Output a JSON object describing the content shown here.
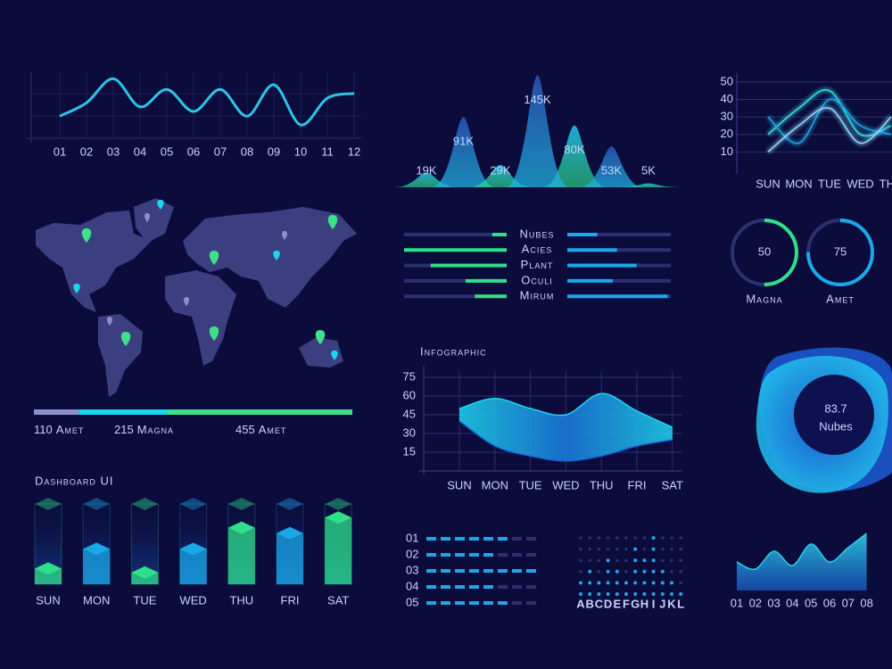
{
  "chart_data": [
    {
      "type": "line",
      "categories": [
        "01",
        "02",
        "03",
        "04",
        "05",
        "06",
        "07",
        "08",
        "09",
        "10",
        "11",
        "12"
      ],
      "values": [
        33,
        53,
        89,
        47,
        73,
        40,
        73,
        33,
        80,
        20,
        60,
        67
      ],
      "ylim": [
        0,
        100
      ],
      "color": "#2ec4e6",
      "grid": true
    },
    {
      "type": "peak",
      "categories": [
        null,
        null,
        null,
        null,
        null,
        null,
        null
      ],
      "values": [
        19000,
        91000,
        29000,
        145000,
        80000,
        53000,
        5000
      ],
      "value_labels": [
        "19K",
        "91K",
        "29K",
        "145K",
        "80K",
        "53K",
        "5K"
      ],
      "ylim": [
        0,
        150000
      ]
    },
    {
      "type": "multiline",
      "categories": [
        "SUN",
        "MON",
        "TUE",
        "WED",
        "THU"
      ],
      "series": [
        {
          "color": "#37e0e8",
          "values": [
            20,
            35,
            45,
            20,
            25
          ]
        },
        {
          "color": "#1fa6e0",
          "values": [
            30,
            15,
            40,
            25,
            20
          ]
        },
        {
          "color": "#8fd9ff",
          "values": [
            10,
            25,
            35,
            15,
            30
          ]
        }
      ],
      "ylim": [
        0,
        55
      ],
      "yticks": [
        10,
        20,
        30,
        40,
        50
      ],
      "grid": true
    },
    {
      "type": "paired-bar",
      "categories": [
        "Nubes",
        "Acies",
        "Plant",
        "Oculi",
        "Mirum"
      ],
      "series": [
        {
          "color": "#2ee08a",
          "values": [
            14,
            100,
            74,
            40,
            31
          ]
        },
        {
          "color": "#1aa8e8",
          "values": [
            29,
            48,
            67,
            44,
            97
          ]
        }
      ],
      "xlim": [
        0,
        100
      ]
    },
    {
      "type": "gauge",
      "categories": [
        "Magna",
        "Amet"
      ],
      "values": [
        50,
        75
      ],
      "ylim": [
        0,
        100
      ],
      "colors": [
        "#2ee08a",
        "#1aa8e8"
      ]
    },
    {
      "type": "area-band",
      "title": "Infographic",
      "categories": [
        "SUN",
        "MON",
        "TUE",
        "WED",
        "THU",
        "FRI",
        "SAT"
      ],
      "series": [
        {
          "color": "#1fd6f0",
          "values": [
            50,
            58,
            50,
            45,
            62,
            48,
            35
          ]
        },
        {
          "color": "#1565d8",
          "values": [
            40,
            20,
            12,
            8,
            12,
            20,
            25
          ]
        }
      ],
      "ylim": [
        0,
        80
      ],
      "yticks": [
        15,
        30,
        45,
        60,
        75
      ],
      "grid": true
    },
    {
      "type": "kpi",
      "value": 83.7,
      "label": "Nubes"
    },
    {
      "type": "bar3d",
      "title": "Dashboard UI",
      "categories": [
        "SUN",
        "MON",
        "TUE",
        "WED",
        "THU",
        "FRI",
        "SAT"
      ],
      "values": [
        20,
        45,
        15,
        45,
        72,
        65,
        85
      ],
      "ylim": [
        0,
        100
      ],
      "colors": [
        "#2ee08a",
        "#1aa8e8",
        "#2ee08a",
        "#1aa8e8",
        "#2ee08a",
        "#1aa8e8",
        "#2ee08a"
      ]
    },
    {
      "type": "dash-rows",
      "categories": [
        "01",
        "02",
        "03",
        "04",
        "05"
      ],
      "values": [
        6,
        5,
        8,
        5,
        6
      ],
      "xlim": [
        0,
        8
      ],
      "color": "#1fa6e8"
    },
    {
      "type": "dot-matrix",
      "categories": [
        "A",
        "B",
        "C",
        "D",
        "E",
        "F",
        "G",
        "H",
        "I",
        "J",
        "K",
        "L"
      ],
      "values": [
        2,
        3,
        2,
        4,
        3,
        2,
        5,
        4,
        6,
        3,
        2,
        1
      ],
      "ylim": [
        0,
        6
      ],
      "color": "#1fa6e8"
    },
    {
      "type": "area",
      "categories": [
        "01",
        "02",
        "03",
        "04",
        "05",
        "06",
        "07",
        "08"
      ],
      "values": [
        40,
        30,
        55,
        35,
        65,
        40,
        60,
        80
      ],
      "ylim": [
        0,
        100
      ],
      "color": "#2bd0e8"
    }
  ],
  "map": {
    "type": "progress",
    "items": [
      {
        "value": 110,
        "label": "Amet",
        "color": "#8d8fc9"
      },
      {
        "value": 215,
        "label": "Magna",
        "color": "#18d6f0"
      },
      {
        "value": 455,
        "label": "Amet",
        "color": "#3ee08a"
      }
    ]
  }
}
